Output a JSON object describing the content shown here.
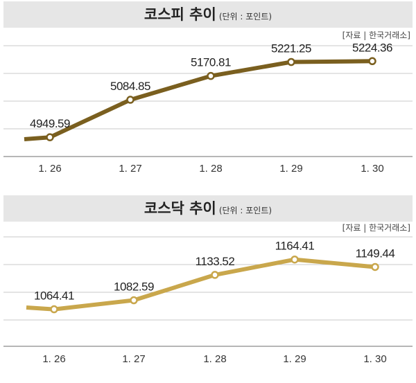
{
  "charts": [
    {
      "heading": "코스피 추이",
      "unit": "(단위 : 포인트)",
      "source": "[자료 | 한국거래소]",
      "line_color": "#7a5f1f"
    },
    {
      "heading": "코스닥 추이",
      "unit": "(단위 : 포인트)",
      "source": "[자료 | 한국거래소]",
      "line_color": "#c9a74c"
    }
  ],
  "chart_data": [
    {
      "type": "line",
      "title": "코스피 추이",
      "unit": "단위 : 포인트",
      "source": "자료 | 한국거래소",
      "categories": [
        "1. 26",
        "1. 27",
        "1. 28",
        "1. 29",
        "1. 30"
      ],
      "values": [
        4949.59,
        5084.85,
        5170.81,
        5221.25,
        5224.36
      ],
      "value_labels": [
        "4949.59",
        "5084.85",
        "5170.81",
        "5221.25",
        "5224.36"
      ],
      "ylim": [
        4880,
        5280
      ],
      "grid": true
    },
    {
      "type": "line",
      "title": "코스닥 추이",
      "unit": "단위 : 포인트",
      "source": "자료 | 한국거래소",
      "categories": [
        "1. 26",
        "1. 27",
        "1. 28",
        "1. 29",
        "1. 30"
      ],
      "values": [
        1064.41,
        1082.59,
        1133.52,
        1164.41,
        1149.44
      ],
      "value_labels": [
        "1064.41",
        "1082.59",
        "1133.52",
        "1164.41",
        "1149.44"
      ],
      "ylim": [
        990,
        1210
      ],
      "grid": true
    }
  ]
}
